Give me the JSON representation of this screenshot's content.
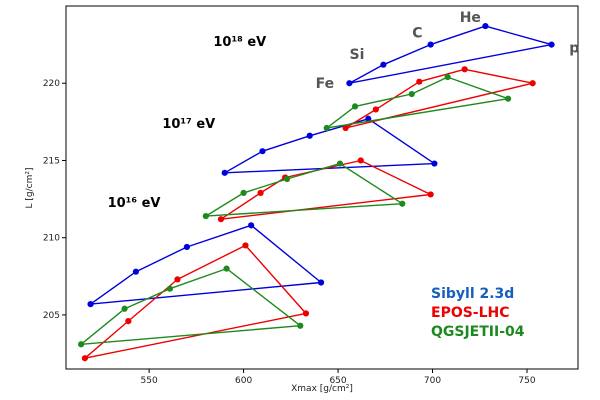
{
  "chart_data": {
    "type": "line",
    "xlabel": "Xmax [g/cm²]",
    "ylabel": "L [g/cm²]",
    "xlim": [
      506,
      777
    ],
    "ylim": [
      201.5,
      225
    ],
    "xticks": [
      550,
      600,
      650,
      700,
      750
    ],
    "yticks": [
      205,
      210,
      215,
      220
    ],
    "point_order": [
      "p",
      "He",
      "C",
      "Si",
      "Fe",
      "p"
    ],
    "series": [
      {
        "name": "Sibyll 2.3d",
        "color": "#0000dd",
        "groups": [
          {
            "energy": "10¹⁶ eV",
            "points": [
              [
                641,
                207.1
              ],
              [
                604,
                210.8
              ],
              [
                570,
                209.4
              ],
              [
                543,
                207.8
              ],
              [
                519,
                205.7
              ],
              [
                641,
                207.1
              ]
            ]
          },
          {
            "energy": "10¹⁷ eV",
            "points": [
              [
                701,
                214.8
              ],
              [
                666,
                217.7
              ],
              [
                635,
                216.6
              ],
              [
                610,
                215.6
              ],
              [
                590,
                214.2
              ],
              [
                701,
                214.8
              ]
            ]
          },
          {
            "energy": "10¹⁸ eV",
            "points": [
              [
                763,
                222.5
              ],
              [
                728,
                223.7
              ],
              [
                699,
                222.5
              ],
              [
                674,
                221.2
              ],
              [
                656,
                220.0
              ],
              [
                763,
                222.5
              ]
            ]
          }
        ]
      },
      {
        "name": "EPOS-LHC",
        "color": "#ee0000",
        "groups": [
          {
            "energy": "10¹⁶ eV",
            "points": [
              [
                633,
                205.1
              ],
              [
                601,
                209.5
              ],
              [
                565,
                207.3
              ],
              [
                539,
                204.6
              ],
              [
                516,
                202.2
              ],
              [
                633,
                205.1
              ]
            ]
          },
          {
            "energy": "10¹⁷ eV",
            "points": [
              [
                699,
                212.8
              ],
              [
                662,
                215.0
              ],
              [
                622,
                213.9
              ],
              [
                609,
                212.9
              ],
              [
                588,
                211.2
              ],
              [
                699,
                212.8
              ]
            ]
          },
          {
            "energy": "10¹⁸ eV",
            "points": [
              [
                753,
                220.0
              ],
              [
                717,
                220.9
              ],
              [
                693,
                220.1
              ],
              [
                670,
                218.3
              ],
              [
                654,
                217.1
              ],
              [
                753,
                220.0
              ]
            ]
          }
        ]
      },
      {
        "name": "QGSJETII-04",
        "color": "#1e8a1e",
        "groups": [
          {
            "energy": "10¹⁶ eV",
            "points": [
              [
                630,
                204.3
              ],
              [
                591,
                208.0
              ],
              [
                561,
                206.7
              ],
              [
                537,
                205.4
              ],
              [
                514,
                203.1
              ],
              [
                630,
                204.3
              ]
            ]
          },
          {
            "energy": "10¹⁷ eV",
            "points": [
              [
                684,
                212.2
              ],
              [
                651,
                214.8
              ],
              [
                623,
                213.8
              ],
              [
                600,
                212.9
              ],
              [
                580,
                211.4
              ],
              [
                684,
                212.2
              ]
            ]
          },
          {
            "energy": "10¹⁸ eV",
            "points": [
              [
                740,
                219.0
              ],
              [
                708,
                220.4
              ],
              [
                689,
                219.3
              ],
              [
                659,
                218.5
              ],
              [
                644,
                217.1
              ],
              [
                740,
                219.0
              ]
            ]
          }
        ]
      }
    ],
    "energy_labels": [
      {
        "text": "10¹⁸ eV",
        "x": 598,
        "y": 222.4
      },
      {
        "text": "10¹⁷ eV",
        "x": 571,
        "y": 217.1
      },
      {
        "text": "10¹⁶ eV",
        "x": 542,
        "y": 212.0
      }
    ],
    "element_labels": [
      {
        "text": "Fe",
        "x": 643,
        "y": 220.0
      },
      {
        "text": "Si",
        "x": 660,
        "y": 221.9
      },
      {
        "text": "C",
        "x": 692,
        "y": 223.3
      },
      {
        "text": "He",
        "x": 720,
        "y": 224.3
      },
      {
        "text": "p",
        "x": 775,
        "y": 222.3
      }
    ],
    "legend": {
      "placement": "lower-right"
    }
  }
}
